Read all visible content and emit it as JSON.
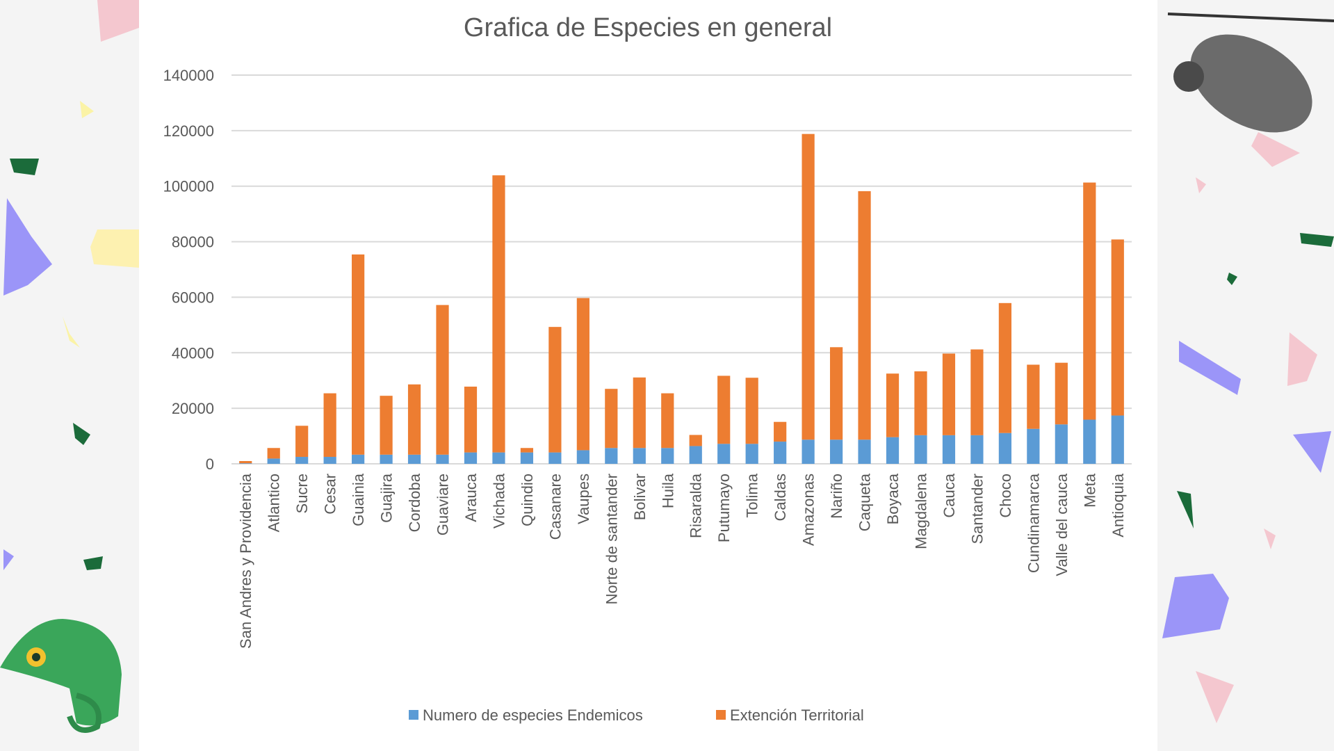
{
  "chart_data": {
    "type": "bar",
    "stacked": true,
    "title": "Grafica de Especies en general",
    "xlabel": "",
    "ylabel": "",
    "ylim": [
      0,
      140000
    ],
    "yticks": [
      "0",
      "20000",
      "40000",
      "60000",
      "80000",
      "100000",
      "120000",
      "140000"
    ],
    "grid": true,
    "legend_position": "bottom",
    "categories": [
      "San Andres y Providencia",
      "Atlantico",
      "Sucre",
      "Cesar",
      "Guainia",
      "Guajira",
      "Cordoba",
      "Guaviare",
      "Arauca",
      "Vichada",
      "Quindio",
      "Casanare",
      "Vaupes",
      "Norte de santander",
      "Bolivar",
      "Huila",
      "Risaralda",
      "Putumayo",
      "Tolima",
      "Caldas",
      "Amazonas",
      "Nariño",
      "Caqueta",
      "Boyaca",
      "Magdalena",
      "Cauca",
      "Santander",
      "Choco",
      "Cundinamarca",
      "Valle del cauca",
      "Meta",
      "Antioquia"
    ],
    "series": [
      {
        "name": "Numero de especies Endemicos",
        "color": "#5b9bd5",
        "values": [
          200,
          1900,
          2500,
          2500,
          3300,
          3300,
          3300,
          3300,
          4100,
          4100,
          4100,
          4100,
          4900,
          5700,
          5700,
          5700,
          6400,
          7200,
          7200,
          8000,
          8700,
          8700,
          8700,
          9600,
          10300,
          10300,
          10300,
          11100,
          12600,
          14200,
          15900,
          17400
        ]
      },
      {
        "name": "Extención Territorial",
        "color": "#ed7d31",
        "values": [
          800,
          3800,
          11200,
          22900,
          72100,
          21200,
          25300,
          53900,
          23700,
          99800,
          1600,
          45200,
          54800,
          21300,
          25400,
          19700,
          4000,
          24500,
          23800,
          7100,
          110100,
          33300,
          89500,
          22900,
          23000,
          29400,
          30900,
          46800,
          23100,
          22200,
          85400,
          63400
        ]
      }
    ]
  },
  "decor": {
    "left_panel": "chameleon-illustration",
    "right_panel": "sloth-illustration"
  }
}
